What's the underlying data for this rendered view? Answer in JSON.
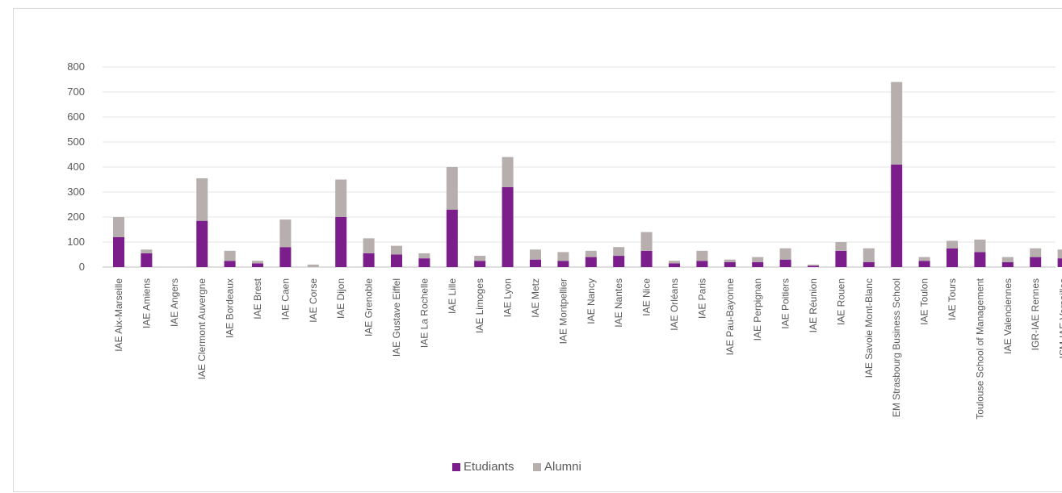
{
  "chart_data": {
    "type": "bar",
    "stacked": true,
    "title": "",
    "xlabel": "",
    "ylabel": "",
    "ylim": [
      0,
      800
    ],
    "yticks": [
      0,
      100,
      200,
      300,
      400,
      500,
      600,
      700,
      800
    ],
    "grid": true,
    "legend_position": "bottom",
    "categories": [
      "IAE Aix-Marseille",
      "IAE Amiens",
      "IAE Angers",
      "IAE Clermont Auvergne",
      "IAE Bordeaux",
      "IAE Brest",
      "IAE Caen",
      "IAE Corse",
      "IAE Dijon",
      "IAE Grenoble",
      "IAE Gustave Eiffel",
      "IAE La Rochelle",
      "IAE Lille",
      "IAE Limoges",
      "IAE Lyon",
      "IAE Metz",
      "IAE Montpellier",
      "IAE Nancy",
      "IAE Nantes",
      "IAE Nice",
      "IAE Orléans",
      "IAE Paris",
      "IAE Pau-Bayonne",
      "IAE Perpignan",
      "IAE Poitiers",
      "IAE Réunion",
      "IAE Rouen",
      "IAE Savoie Mont-Blanc",
      "EM Strasbourg Business School",
      "IAE Toulon",
      "IAE Tours",
      "Toulouse School of Management",
      "IAE Valenciennes",
      "IGR-IAE Rennes",
      "ISM-IAE Versailles"
    ],
    "series": [
      {
        "name": "Etudiants",
        "color": "#7b1e8c",
        "values": [
          120,
          55,
          0,
          185,
          25,
          15,
          80,
          0,
          200,
          55,
          50,
          35,
          230,
          25,
          320,
          30,
          25,
          40,
          45,
          65,
          15,
          25,
          20,
          20,
          30,
          5,
          65,
          20,
          410,
          25,
          75,
          60,
          20,
          40,
          35
        ]
      },
      {
        "name": "Alumni",
        "color": "#b7aeae",
        "values": [
          80,
          15,
          0,
          170,
          40,
          10,
          110,
          10,
          150,
          60,
          35,
          20,
          170,
          20,
          120,
          40,
          35,
          25,
          35,
          75,
          10,
          40,
          10,
          20,
          45,
          5,
          35,
          55,
          330,
          15,
          30,
          50,
          20,
          35,
          35
        ]
      }
    ]
  }
}
